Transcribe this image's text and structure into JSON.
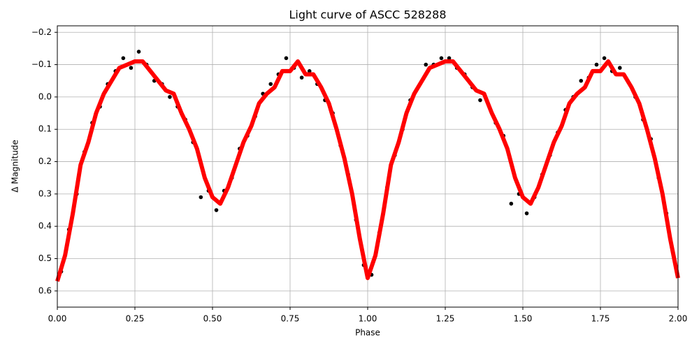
{
  "chart_data": {
    "type": "scatter",
    "title": "Light curve of ASCC 528288",
    "x_label": "Phase",
    "y_label": "Δ Magnitude",
    "xlim": [
      0,
      2
    ],
    "ylim": [
      0.65,
      -0.22
    ],
    "xticks": [
      {
        "value": 0,
        "label": "0.00"
      },
      {
        "value": 0.25,
        "label": "0.25"
      },
      {
        "value": 0.5,
        "label": "0.50"
      },
      {
        "value": 0.75,
        "label": "0.75"
      },
      {
        "value": 1,
        "label": "1.00"
      },
      {
        "value": 1.25,
        "label": "1.25"
      },
      {
        "value": 1.5,
        "label": "1.50"
      },
      {
        "value": 1.75,
        "label": "1.75"
      },
      {
        "value": 2,
        "label": "2.00"
      }
    ],
    "yticks": [
      {
        "value": -0.2,
        "label": "−0.2"
      },
      {
        "value": -0.1,
        "label": "−0.1"
      },
      {
        "value": 0,
        "label": "0.0"
      },
      0.1,
      0.2,
      0.3,
      0.4,
      0.5,
      0.6
    ],
    "grid": true,
    "series": [
      {
        "style": "markers",
        "color": "#000000",
        "x": [
          0.0125,
          0.0375,
          0.0625,
          0.0875,
          0.1125,
          0.1375,
          0.1625,
          0.1875,
          0.2125,
          0.2375,
          0.2625,
          0.2875,
          0.3125,
          0.3375,
          0.3625,
          0.3875,
          0.4125,
          0.4375,
          0.4625,
          0.4875,
          0.5125,
          0.5375,
          0.5625,
          0.5875,
          0.6125,
          0.6375,
          0.6625,
          0.6875,
          0.7125,
          0.7375,
          0.7625,
          0.7875,
          0.8125,
          0.8375,
          0.8625,
          0.8875,
          0.9125,
          0.9375,
          0.9625,
          0.9875,
          1.0125,
          1.0375,
          1.0625,
          1.0875,
          1.1125,
          1.1375,
          1.1625,
          1.1875,
          1.2125,
          1.2375,
          1.2625,
          1.2875,
          1.3125,
          1.3375,
          1.3625,
          1.3875,
          1.4125,
          1.4375,
          1.4625,
          1.4875,
          1.5125,
          1.5375,
          1.5625,
          1.5875,
          1.6125,
          1.6375,
          1.6625,
          1.6875,
          1.7125,
          1.7375,
          1.7625,
          1.7875,
          1.8125,
          1.8375,
          1.8625,
          1.8875,
          1.9125,
          1.9375,
          1.9625,
          1.9875
        ],
        "values": [
          0.54,
          0.41,
          0.3,
          0.17,
          0.08,
          0.03,
          -0.04,
          -0.08,
          -0.12,
          -0.09,
          -0.14,
          -0.1,
          -0.05,
          -0.04,
          0.0,
          0.03,
          0.07,
          0.14,
          0.31,
          0.29,
          0.35,
          0.29,
          0.25,
          0.16,
          0.12,
          0.06,
          -0.01,
          -0.04,
          -0.07,
          -0.12,
          -0.09,
          -0.06,
          -0.08,
          -0.04,
          0.01,
          0.05,
          0.15,
          0.24,
          0.38,
          0.52,
          0.55,
          0.42,
          0.28,
          0.18,
          0.1,
          0.01,
          -0.03,
          -0.1,
          -0.1,
          -0.12,
          -0.12,
          -0.09,
          -0.07,
          -0.03,
          0.01,
          0.02,
          0.08,
          0.12,
          0.33,
          0.3,
          0.36,
          0.31,
          0.24,
          0.18,
          0.11,
          0.04,
          0.0,
          -0.05,
          -0.06,
          -0.1,
          -0.12,
          -0.08,
          -0.09,
          -0.05,
          0.0,
          0.07,
          0.13,
          0.25,
          0.36,
          0.5
        ]
      },
      {
        "style": "line",
        "color": "#ff0000",
        "x": [
          0,
          0.025,
          0.05,
          0.075,
          0.1,
          0.125,
          0.15,
          0.175,
          0.2,
          0.225,
          0.25,
          0.275,
          0.3,
          0.325,
          0.35,
          0.375,
          0.4,
          0.425,
          0.45,
          0.475,
          0.5,
          0.525,
          0.55,
          0.575,
          0.6,
          0.625,
          0.65,
          0.675,
          0.7,
          0.725,
          0.75,
          0.775,
          0.8,
          0.825,
          0.85,
          0.875,
          0.9,
          0.925,
          0.95,
          0.975,
          1,
          1.025,
          1.05,
          1.075,
          1.1,
          1.125,
          1.15,
          1.175,
          1.2,
          1.225,
          1.25,
          1.275,
          1.3,
          1.325,
          1.35,
          1.375,
          1.4,
          1.425,
          1.45,
          1.475,
          1.5,
          1.525,
          1.55,
          1.575,
          1.6,
          1.625,
          1.65,
          1.675,
          1.7,
          1.725,
          1.75,
          1.775,
          1.8,
          1.825,
          1.85,
          1.875,
          1.9,
          1.925,
          1.95,
          1.975,
          2
        ],
        "values": [
          0.57,
          0.49,
          0.36,
          0.21,
          0.14,
          0.05,
          -0.01,
          -0.05,
          -0.09,
          -0.1,
          -0.11,
          -0.11,
          -0.08,
          -0.05,
          -0.02,
          -0.01,
          0.05,
          0.1,
          0.16,
          0.25,
          0.31,
          0.33,
          0.28,
          0.21,
          0.14,
          0.09,
          0.02,
          -0.01,
          -0.03,
          -0.08,
          -0.08,
          -0.11,
          -0.07,
          -0.07,
          -0.03,
          0.02,
          0.1,
          0.19,
          0.3,
          0.44,
          0.56,
          0.49,
          0.36,
          0.21,
          0.14,
          0.05,
          -0.01,
          -0.05,
          -0.09,
          -0.1,
          -0.11,
          -0.11,
          -0.08,
          -0.05,
          -0.02,
          -0.01,
          0.05,
          0.1,
          0.16,
          0.25,
          0.31,
          0.33,
          0.28,
          0.21,
          0.14,
          0.09,
          0.02,
          -0.01,
          -0.03,
          -0.08,
          -0.08,
          -0.11,
          -0.07,
          -0.07,
          -0.03,
          0.02,
          0.1,
          0.19,
          0.3,
          0.44,
          0.56
        ]
      }
    ]
  }
}
